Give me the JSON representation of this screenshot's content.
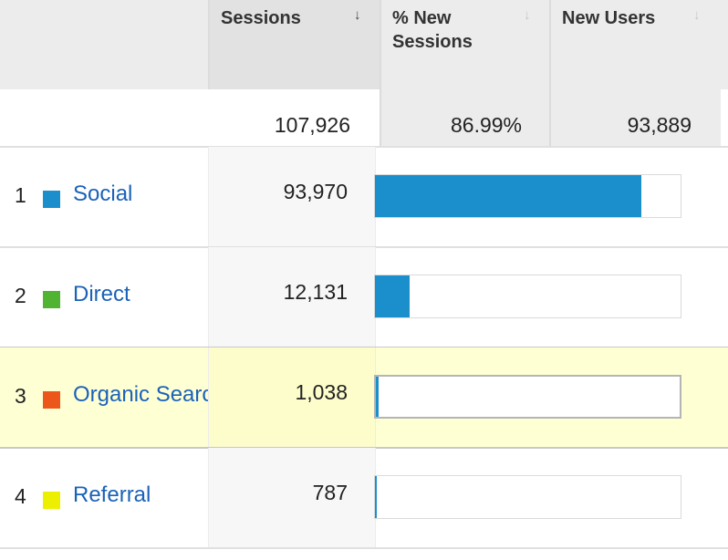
{
  "header": {
    "columns": [
      {
        "label_line1": "Sessions",
        "label_line2": "",
        "sort_active": true
      },
      {
        "label_line1": "% New",
        "label_line2": "Sessions",
        "sort_active": false
      },
      {
        "label_line1": "New Users",
        "label_line2": "",
        "sort_active": false
      }
    ],
    "sort_arrow": "↓"
  },
  "totals": {
    "sessions": "107,926",
    "pct_new_sessions": "86.99%",
    "new_users": "93,889"
  },
  "rows": [
    {
      "index": "1",
      "name": "Social",
      "color": "#1b8fcb",
      "sessions": "93,970",
      "share": 0.8707,
      "highlighted": false
    },
    {
      "index": "2",
      "name": "Direct",
      "color": "#50b432",
      "sessions": "12,131",
      "share": 0.1124,
      "highlighted": false
    },
    {
      "index": "3",
      "name": "Organic Search",
      "color": "#ed561b",
      "sessions": "1,038",
      "share": 0.0096,
      "highlighted": true
    },
    {
      "index": "4",
      "name": "Referral",
      "color": "#edef00",
      "sessions": "787",
      "share": 0.0073,
      "highlighted": false
    }
  ],
  "icons": {
    "legend_swatch": "square-color-swatch",
    "sort": "sort-down-arrow-icon"
  }
}
